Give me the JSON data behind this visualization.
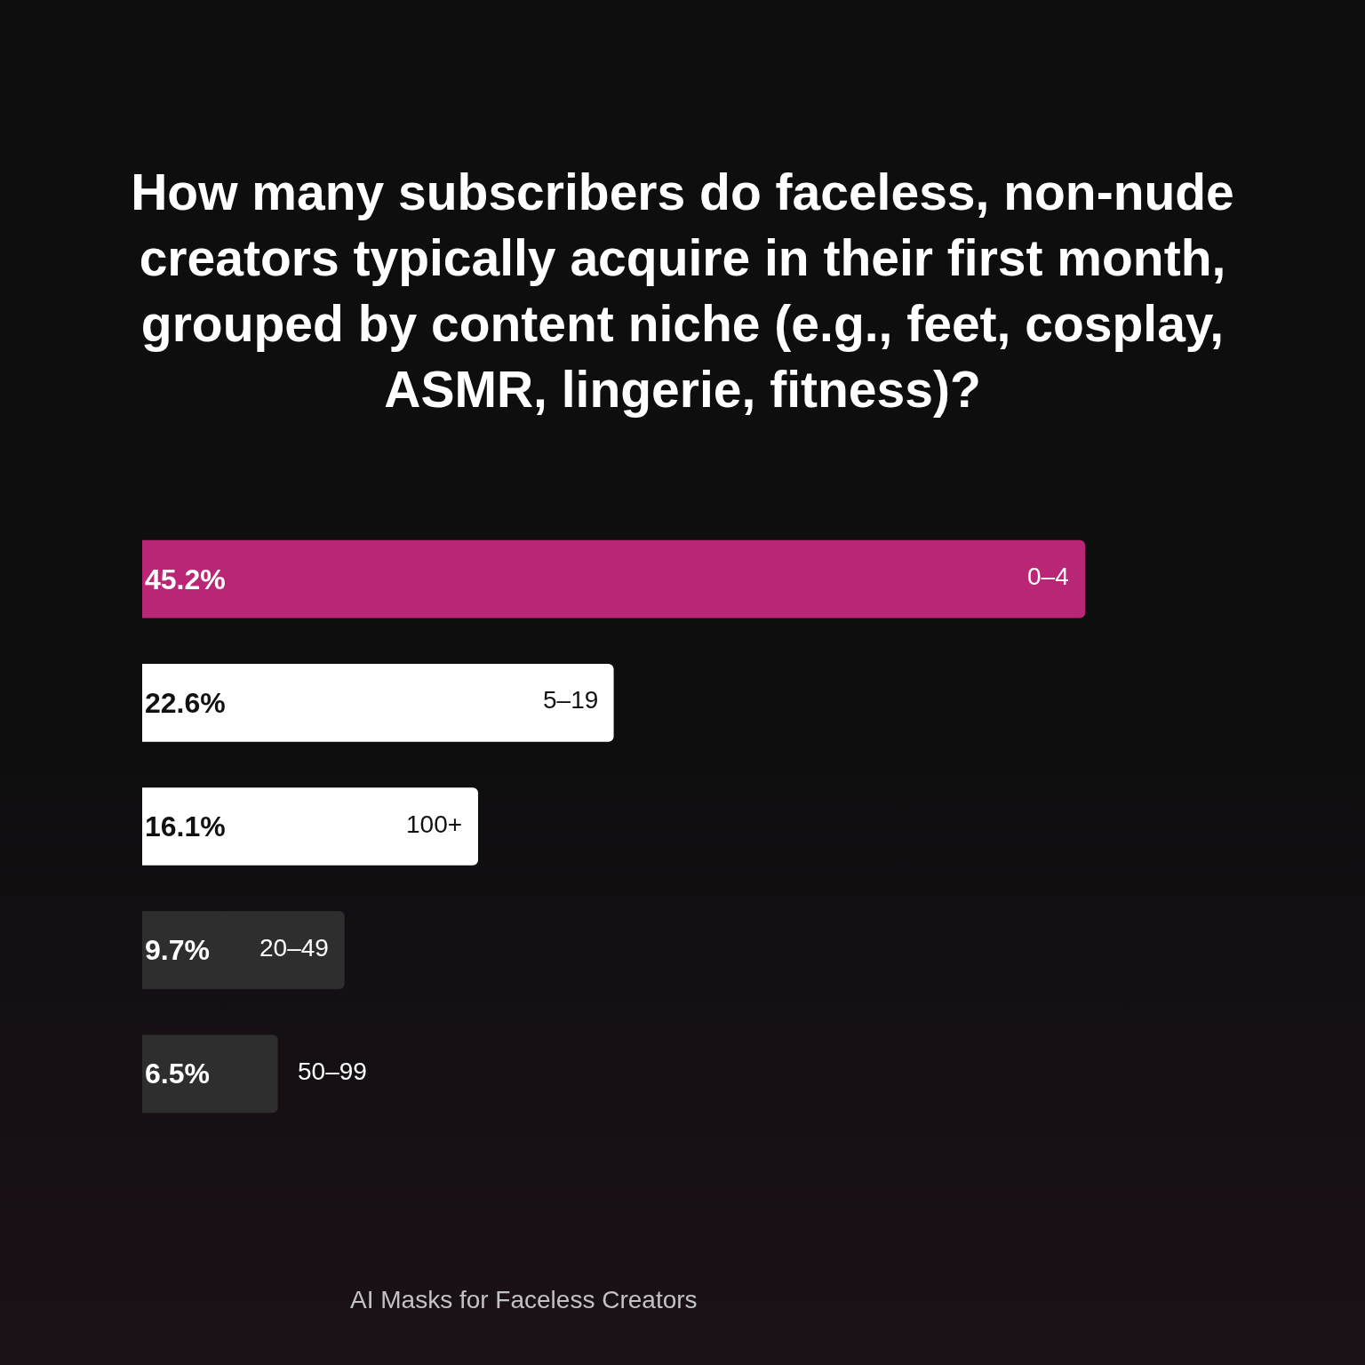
{
  "chart_data": {
    "type": "bar",
    "orientation": "horizontal",
    "title": "How many subscribers do faceless, non-nude creators typically acquire in their first month, grouped by content niche (e.g., feet, cosplay, ASMR, lingerie, fitness)?",
    "categories": [
      "0–4",
      "5–19",
      "100+",
      "20–49",
      "50–99"
    ],
    "values": [
      45.2,
      22.6,
      16.1,
      9.7,
      6.5
    ],
    "value_labels": [
      "45.2%",
      "22.6%",
      "16.1%",
      "9.7%",
      "6.5%"
    ],
    "colors": [
      "#b82675",
      "#ffffff",
      "#ffffff",
      "#2e2e2e",
      "#2e2e2e"
    ],
    "grid": false,
    "annotations": [
      "AI Masks for Faceless Creators"
    ]
  }
}
